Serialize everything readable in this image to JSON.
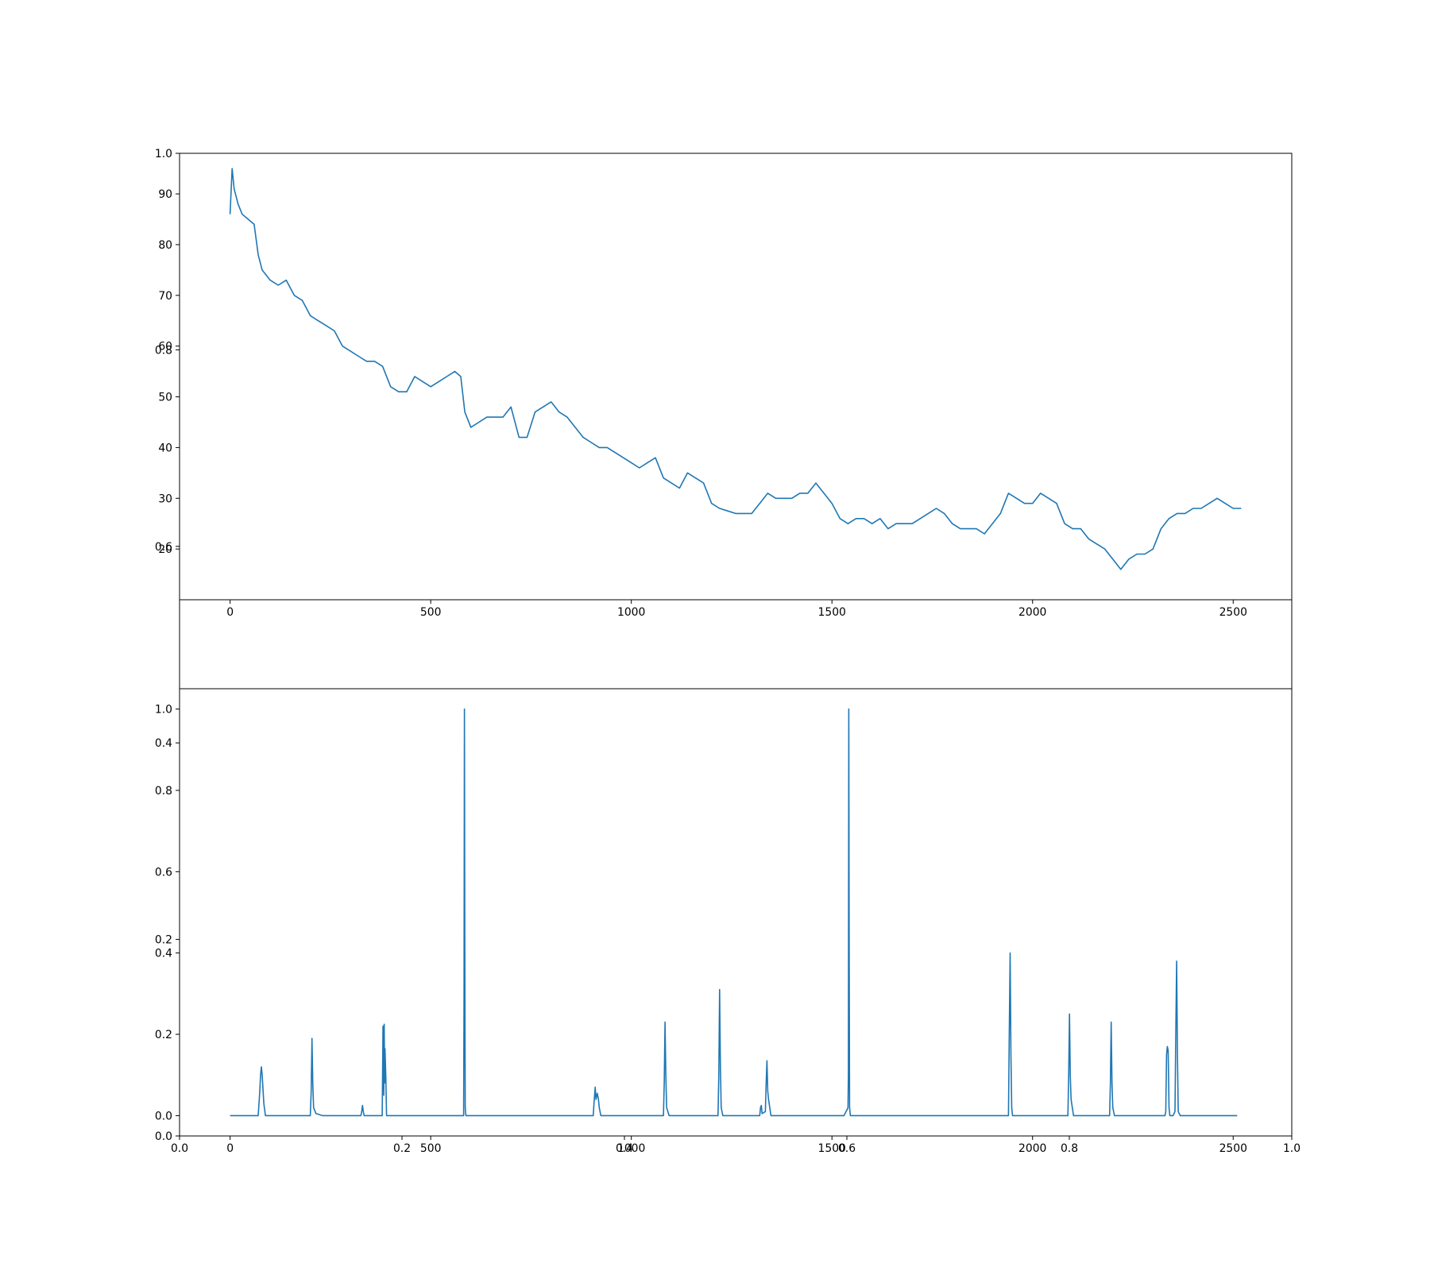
{
  "figure": {
    "background": "#ffffff",
    "line_color": "#1f77b4"
  },
  "chart_data": [
    {
      "name": "overlay-axes",
      "type": "line",
      "title": "",
      "xlabel": "",
      "ylabel": "",
      "xlim": [
        0.0,
        1.0
      ],
      "ylim": [
        0.0,
        1.0
      ],
      "xticks": [
        0.0,
        0.2,
        0.4,
        0.6,
        0.8,
        1.0
      ],
      "xtick_labels": [
        "0.0",
        "0.2",
        "0.4",
        "0.6",
        "0.8",
        "1.0"
      ],
      "yticks": [
        0.0,
        0.2,
        0.4,
        0.6,
        0.8,
        1.0
      ],
      "ytick_labels": [
        "0.0",
        "0.2",
        "0.4",
        "0.6",
        "0.8",
        "1.0"
      ],
      "series": [],
      "grid": false
    },
    {
      "name": "price-series",
      "type": "line",
      "title": "",
      "xlabel": "",
      "ylabel": "",
      "xlim": [
        -126,
        2646
      ],
      "ylim": [
        10,
        98
      ],
      "xticks": [
        0,
        500,
        1000,
        1500,
        2000,
        2500
      ],
      "xtick_labels": [
        "0",
        "500",
        "1000",
        "1500",
        "2000",
        "2500"
      ],
      "yticks": [
        20,
        30,
        40,
        50,
        60,
        70,
        80,
        90
      ],
      "ytick_labels": [
        "20",
        "30",
        "40",
        "50",
        "60",
        "70",
        "80",
        "90"
      ],
      "grid": false,
      "series": [
        {
          "x": [
            0,
            5,
            10,
            20,
            30,
            45,
            60,
            70,
            80,
            100,
            120,
            140,
            160,
            180,
            200,
            220,
            240,
            260,
            280,
            300,
            320,
            340,
            360,
            380,
            400,
            420,
            440,
            460,
            480,
            500,
            520,
            540,
            560,
            575,
            585,
            600,
            620,
            640,
            660,
            680,
            700,
            720,
            740,
            760,
            780,
            800,
            820,
            840,
            860,
            880,
            900,
            920,
            940,
            960,
            980,
            1000,
            1020,
            1040,
            1060,
            1080,
            1100,
            1120,
            1140,
            1160,
            1180,
            1200,
            1220,
            1240,
            1260,
            1280,
            1300,
            1320,
            1340,
            1360,
            1380,
            1400,
            1420,
            1440,
            1460,
            1480,
            1500,
            1520,
            1540,
            1560,
            1580,
            1600,
            1620,
            1640,
            1660,
            1680,
            1700,
            1720,
            1740,
            1760,
            1780,
            1800,
            1820,
            1840,
            1860,
            1880,
            1900,
            1920,
            1940,
            1960,
            1980,
            2000,
            2020,
            2040,
            2060,
            2080,
            2100,
            2120,
            2140,
            2160,
            2180,
            2200,
            2220,
            2240,
            2260,
            2280,
            2300,
            2320,
            2340,
            2360,
            2380,
            2400,
            2420,
            2440,
            2460,
            2480,
            2500,
            2520
          ],
          "values": [
            86,
            95,
            91,
            88,
            86,
            85,
            84,
            78,
            75,
            73,
            72,
            73,
            70,
            69,
            66,
            65,
            64,
            63,
            60,
            59,
            58,
            57,
            57,
            56,
            52,
            51,
            51,
            54,
            53,
            52,
            53,
            54,
            55,
            54,
            47,
            44,
            45,
            46,
            46,
            46,
            48,
            42,
            42,
            47,
            48,
            49,
            47,
            46,
            44,
            42,
            41,
            40,
            40,
            39,
            38,
            37,
            36,
            37,
            38,
            34,
            33,
            32,
            35,
            34,
            33,
            29,
            28,
            27.5,
            27,
            27,
            27,
            29,
            31,
            30,
            30,
            30,
            31,
            31,
            33,
            31,
            29,
            26,
            25,
            26,
            26,
            25,
            26,
            24,
            25,
            25,
            25,
            26,
            27,
            28,
            27,
            25,
            24,
            24,
            24,
            23,
            25,
            27,
            31,
            30,
            29,
            29,
            31,
            30,
            29,
            25,
            24,
            24,
            22,
            21,
            20,
            18,
            16,
            18,
            19,
            19,
            20,
            24,
            26,
            27,
            27,
            28,
            28,
            29,
            30,
            29,
            28,
            28
          ]
        }
      ]
    },
    {
      "name": "weight-spikes",
      "type": "line",
      "title": "",
      "xlabel": "",
      "ylabel": "",
      "xlim": [
        -126,
        2646
      ],
      "ylim": [
        -0.05,
        1.05
      ],
      "xticks": [
        0,
        500,
        1000,
        1500,
        2000,
        2500
      ],
      "xtick_labels": [
        "0",
        "500",
        "1000",
        "1500",
        "2000",
        "2500"
      ],
      "yticks": [
        0.0,
        0.2,
        0.4,
        0.6,
        0.8,
        1.0
      ],
      "ytick_labels": [
        "0.0",
        "0.2",
        "0.4",
        "0.6",
        "0.8",
        "1.0"
      ],
      "grid": false,
      "series": [
        {
          "x": [
            0,
            70,
            74,
            76,
            78,
            80,
            84,
            88,
            200,
            202,
            204,
            206,
            208,
            214,
            230,
            326,
            328,
            330,
            332,
            334,
            379,
            381,
            383,
            384,
            385,
            386,
            388,
            390,
            582,
            583,
            584,
            585,
            586,
            587,
            588,
            905,
            907,
            910,
            912,
            915,
            918,
            920,
            924,
            1080,
            1082,
            1084,
            1086,
            1088,
            1094,
            1216,
            1218,
            1220,
            1222,
            1224,
            1228,
            1320,
            1322,
            1324,
            1326,
            1334,
            1336,
            1338,
            1340,
            1342,
            1348,
            1530,
            1535,
            1538,
            1540,
            1541,
            1542,
            1543,
            1544,
            1546,
            1940,
            1942,
            1944,
            1946,
            1948,
            1950,
            2088,
            2090,
            2092,
            2094,
            2096,
            2102,
            2192,
            2194,
            2196,
            2198,
            2200,
            2204,
            2330,
            2332,
            2334,
            2336,
            2338,
            2340,
            2342,
            2350,
            2355,
            2357,
            2359,
            2361,
            2363,
            2368,
            2510
          ],
          "values": [
            0.0,
            0.0,
            0.06,
            0.1,
            0.12,
            0.1,
            0.03,
            0.0,
            0.0,
            0.06,
            0.19,
            0.08,
            0.02,
            0.005,
            0.0,
            0.0,
            0.01,
            0.025,
            0.01,
            0.0,
            0.0,
            0.22,
            0.05,
            0.225,
            0.08,
            0.165,
            0.1,
            0.0,
            0.0,
            0.3,
            1.0,
            0.4,
            0.02,
            0.005,
            0.0,
            0.0,
            0.03,
            0.07,
            0.04,
            0.055,
            0.04,
            0.02,
            0.0,
            0.0,
            0.08,
            0.23,
            0.1,
            0.02,
            0.0,
            0.0,
            0.1,
            0.31,
            0.12,
            0.02,
            0.0,
            0.0,
            0.02,
            0.025,
            0.005,
            0.01,
            0.08,
            0.135,
            0.06,
            0.04,
            0.0,
            0.0,
            0.01,
            0.015,
            0.02,
            0.1,
            1.0,
            0.4,
            0.02,
            0.0,
            0.0,
            0.2,
            0.4,
            0.15,
            0.02,
            0.0,
            0.0,
            0.1,
            0.25,
            0.1,
            0.04,
            0.0,
            0.0,
            0.08,
            0.23,
            0.08,
            0.02,
            0.0,
            0.0,
            0.01,
            0.15,
            0.17,
            0.16,
            0.02,
            0.0,
            0.0,
            0.01,
            0.2,
            0.38,
            0.15,
            0.01,
            0.0,
            0.0
          ]
        }
      ]
    }
  ]
}
